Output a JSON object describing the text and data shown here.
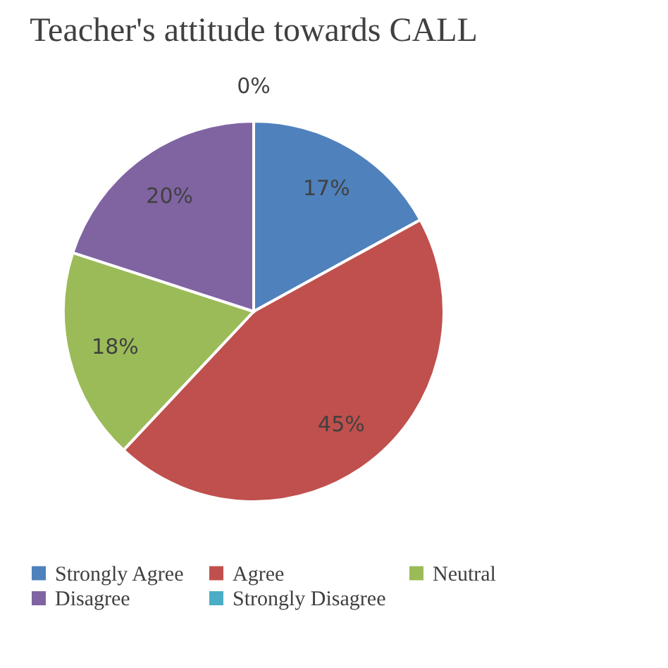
{
  "chart_data": {
    "type": "pie",
    "title": "Teacher's attitude towards CALL",
    "categories": [
      "Strongly Agree",
      "Agree",
      "Neutral",
      "Disagree",
      "Strongly Disagree"
    ],
    "values": [
      17,
      45,
      18,
      20,
      0
    ],
    "colors": [
      "#4f81bd",
      "#c0504d",
      "#9bbb59",
      "#8064a2",
      "#4bacc6"
    ],
    "value_labels": [
      "17%",
      "45%",
      "18%",
      "20%",
      "0%"
    ],
    "legend": "bottom"
  }
}
